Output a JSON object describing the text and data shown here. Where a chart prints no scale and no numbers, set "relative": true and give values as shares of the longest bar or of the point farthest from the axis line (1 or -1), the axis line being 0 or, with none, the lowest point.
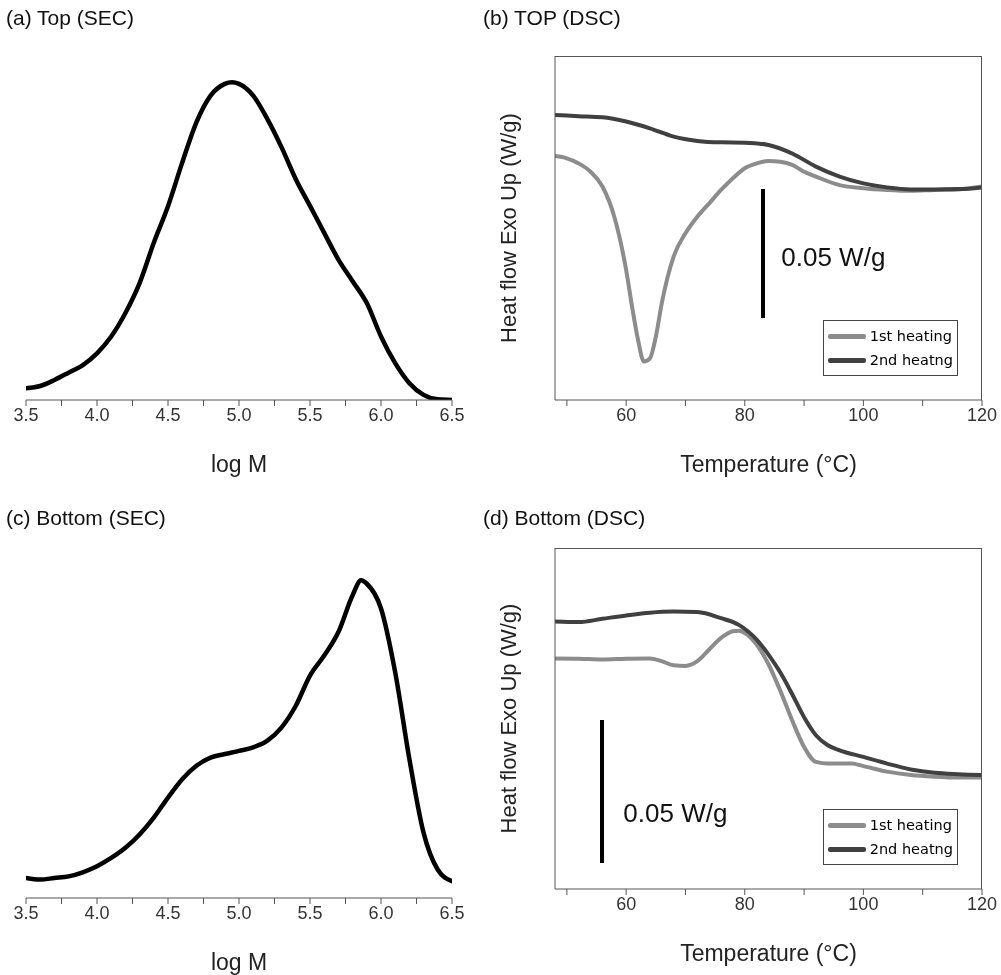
{
  "chart_data": [
    {
      "type": "line",
      "title": "(a) Top (SEC)",
      "xlabel": "log M",
      "relative": true,
      "xlim": [
        3.5,
        6.5
      ],
      "xticks": [
        3.5,
        {
          "value": 3.75,
          "label": null
        },
        {
          "value": 4,
          "label": "4.0"
        },
        {
          "value": 4.25,
          "label": null
        },
        4.5,
        {
          "value": 4.75,
          "label": null
        },
        {
          "value": 5,
          "label": "5.0"
        },
        {
          "value": 5.25,
          "label": null
        },
        5.5,
        {
          "value": 5.75,
          "label": null
        },
        {
          "value": 6,
          "label": "6.0"
        },
        {
          "value": 6.25,
          "label": null
        },
        6.5
      ],
      "x": [
        3.5,
        3.6,
        3.7,
        3.8,
        3.9,
        4.0,
        4.1,
        4.2,
        4.3,
        4.4,
        4.5,
        4.6,
        4.7,
        4.8,
        4.9,
        4.95,
        5.0,
        5.1,
        5.2,
        5.3,
        5.4,
        5.5,
        5.6,
        5.7,
        5.8,
        5.9,
        6.0,
        6.1,
        6.2,
        6.3,
        6.4,
        6.5
      ],
      "series": [
        {
          "color": "#000000",
          "values": [
            0.037,
            0.044,
            0.063,
            0.086,
            0.11,
            0.147,
            0.2,
            0.274,
            0.368,
            0.495,
            0.61,
            0.747,
            0.874,
            0.958,
            0.995,
            1.0,
            0.995,
            0.958,
            0.884,
            0.795,
            0.695,
            0.611,
            0.526,
            0.442,
            0.374,
            0.305,
            0.2,
            0.116,
            0.053,
            0.016,
            0.002,
            0
          ]
        }
      ]
    },
    {
      "type": "line",
      "title": "(b) TOP (DSC)",
      "xlabel": "Temperature (°C)",
      "ylabel": "Heat flow Exo Up (W/g)",
      "relative": true,
      "xlim": [
        48,
        120
      ],
      "xticks": [
        {
          "value": 50,
          "label": null
        },
        60,
        {
          "value": 70,
          "label": null
        },
        80,
        {
          "value": 90,
          "label": null
        },
        100,
        {
          "value": 110,
          "label": null
        },
        120
      ],
      "legend": "bottom right",
      "annotations": [
        "0.05 W/g"
      ],
      "series": [
        {
          "name": "1st heating",
          "color": "#8c8c8c",
          "x": [
            48,
            50,
            52,
            54,
            56,
            58,
            60,
            61,
            62,
            63,
            64,
            65,
            66,
            68,
            70,
            72,
            74,
            76,
            78,
            80,
            82,
            84,
            86,
            88,
            90,
            92,
            96,
            100,
            104,
            108,
            112,
            116,
            120
          ],
          "values": [
            0.856,
            0.848,
            0.83,
            0.801,
            0.749,
            0.643,
            0.456,
            0.327,
            0.211,
            0.135,
            0.146,
            0.222,
            0.339,
            0.503,
            0.585,
            0.643,
            0.69,
            0.737,
            0.778,
            0.813,
            0.83,
            0.839,
            0.836,
            0.825,
            0.801,
            0.784,
            0.754,
            0.743,
            0.737,
            0.734,
            0.737,
            0.739,
            0.749
          ]
        },
        {
          "name": "2nd heatng",
          "color": "#404040",
          "x": [
            48,
            52,
            56,
            60,
            64,
            68,
            72,
            76,
            80,
            84,
            88,
            92,
            96,
            100,
            104,
            108,
            112,
            116,
            120
          ],
          "values": [
            1.0,
            0.996,
            0.992,
            0.977,
            0.953,
            0.924,
            0.909,
            0.904,
            0.903,
            0.895,
            0.865,
            0.819,
            0.784,
            0.76,
            0.746,
            0.739,
            0.739,
            0.74,
            0.746
          ]
        }
      ]
    },
    {
      "type": "line",
      "title": "(c) Bottom (SEC)",
      "xlabel": "log M",
      "relative": true,
      "xlim": [
        3.5,
        6.5
      ],
      "xticks": [
        3.5,
        {
          "value": 3.75,
          "label": null
        },
        {
          "value": 4,
          "label": "4.0"
        },
        {
          "value": 4.25,
          "label": null
        },
        4.5,
        {
          "value": 4.75,
          "label": null
        },
        {
          "value": 5,
          "label": "5.0"
        },
        {
          "value": 5.25,
          "label": null
        },
        5.5,
        {
          "value": 5.75,
          "label": null
        },
        {
          "value": 6,
          "label": "6.0"
        },
        {
          "value": 6.25,
          "label": null
        },
        6.5
      ],
      "x": [
        3.5,
        3.6,
        3.7,
        3.8,
        3.9,
        4.0,
        4.1,
        4.2,
        4.3,
        4.4,
        4.5,
        4.6,
        4.7,
        4.8,
        4.9,
        5.0,
        5.1,
        5.2,
        5.3,
        5.4,
        5.5,
        5.6,
        5.7,
        5.8,
        5.86,
        5.9,
        6.0,
        6.1,
        6.2,
        6.3,
        6.4,
        6.5
      ],
      "series": [
        {
          "color": "#000000",
          "values": [
            0.063,
            0.058,
            0.063,
            0.068,
            0.081,
            0.1,
            0.126,
            0.158,
            0.2,
            0.253,
            0.316,
            0.374,
            0.416,
            0.442,
            0.453,
            0.463,
            0.474,
            0.495,
            0.537,
            0.605,
            0.7,
            0.763,
            0.837,
            0.953,
            1.0,
            0.989,
            0.911,
            0.71,
            0.437,
            0.205,
            0.089,
            0.053
          ]
        }
      ]
    },
    {
      "type": "line",
      "title": "(d) Bottom (DSC)",
      "xlabel": "Temperature (°C)",
      "ylabel": "Heat flow Exo Up (W/g)",
      "relative": true,
      "xlim": [
        48,
        120
      ],
      "xticks": [
        {
          "value": 50,
          "label": null
        },
        60,
        {
          "value": 70,
          "label": null
        },
        80,
        {
          "value": 90,
          "label": null
        },
        100,
        {
          "value": 110,
          "label": null
        },
        120
      ],
      "legend": "bottom right",
      "annotations": [
        "0.05 W/g"
      ],
      "series": [
        {
          "name": "1st heating",
          "color": "#8c8c8c",
          "x": [
            48,
            52,
            56,
            60,
            64,
            66,
            68,
            70,
            72,
            74,
            76,
            78,
            79,
            80,
            82,
            84,
            86,
            88,
            90,
            92,
            94,
            98,
            100,
            104,
            108,
            112,
            116,
            120
          ],
          "values": [
            0.831,
            0.83,
            0.827,
            0.83,
            0.831,
            0.821,
            0.806,
            0.804,
            0.821,
            0.863,
            0.905,
            0.929,
            0.931,
            0.923,
            0.881,
            0.81,
            0.714,
            0.607,
            0.512,
            0.458,
            0.452,
            0.452,
            0.443,
            0.423,
            0.411,
            0.405,
            0.402,
            0.402
          ]
        },
        {
          "name": "2nd heatng",
          "color": "#404040",
          "x": [
            48,
            52,
            56,
            60,
            64,
            68,
            72,
            76,
            79,
            82,
            84,
            86,
            88,
            90,
            92,
            94,
            96,
            100,
            104,
            108,
            112,
            116,
            120
          ],
          "values": [
            0.964,
            0.962,
            0.974,
            0.986,
            0.996,
            1.0,
            0.998,
            0.976,
            0.952,
            0.899,
            0.845,
            0.78,
            0.702,
            0.619,
            0.554,
            0.518,
            0.5,
            0.476,
            0.452,
            0.431,
            0.419,
            0.414,
            0.411
          ]
        }
      ]
    }
  ]
}
